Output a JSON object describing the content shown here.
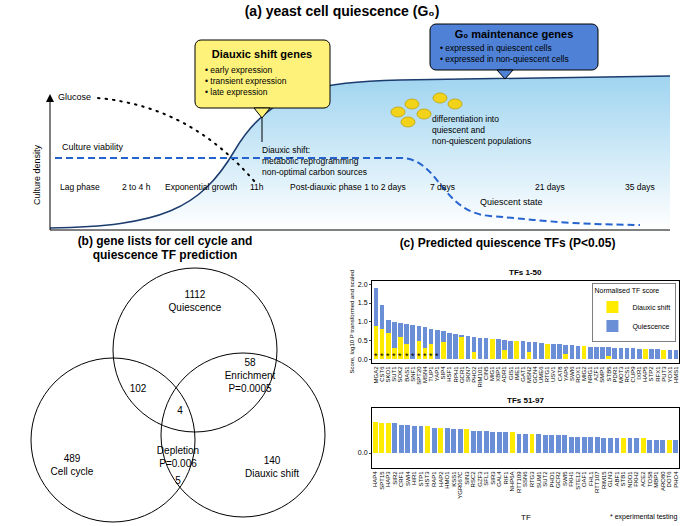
{
  "panel_a": {
    "title": "(a) yeast cell quiescence (G₀)",
    "y_label": "Culture density",
    "glucose": "Glucose",
    "viability": "Culture viability",
    "callout_diauxic": {
      "title": "Diauxic shift genes",
      "items": [
        "• early expression",
        "• transient expression",
        "• late expression"
      ]
    },
    "callout_g0": {
      "title": "G₀ maintenance genes",
      "items": [
        "• expressed in quiescent cells",
        "• expressed in non-quiescent cells"
      ]
    },
    "diauxic_note": [
      "Diauxic shift:",
      "metabolic reprogramming",
      "non-optimal carbon sources"
    ],
    "differentiation_note": [
      "differentiation into",
      "quiescent and",
      "non-quiescent populations"
    ],
    "quiescent_state": "Quiescent state",
    "timeline": [
      "Lag phase",
      "2 to 4 h",
      "Exponential growth",
      "11h",
      "Post-diauxic phase 1 to 2 days",
      "7 days",
      "21 days",
      "35 days"
    ]
  },
  "panel_b": {
    "title": [
      "(b) gene lists for cell cycle and",
      "quiescence TF prediction"
    ],
    "sets": [
      {
        "name": "Quiescence",
        "only": 1112
      },
      {
        "name": "Cell cycle",
        "only": 489
      },
      {
        "name": "Diauxic shift",
        "only": 140
      }
    ],
    "quiescence_cell_cycle": 102,
    "quiescence_diauxic_shift": {
      "count": 58,
      "label": "Enrichment",
      "p_label": "P=0.0005"
    },
    "cell_cycle_diauxic_shift": {
      "count": 5,
      "label": "Depletion",
      "p_label": "P=0.006"
    },
    "all_three": 4
  },
  "panel_c_title": "(c) Predicted quiescence TFs (P<0.05)",
  "chart_data": [
    {
      "type": "bar",
      "title": "TFs 1-50",
      "stacked": true,
      "legend": "upper right",
      "legend_title": "Normalised TF score",
      "y_label": "Score, log10 P transformed and scaled",
      "categories": [
        "MGA2",
        "CST6",
        "SKO1",
        "SUT1",
        "SOK2",
        "BAS1",
        "SNF1",
        "SPT20",
        "MSN4",
        "TUP1",
        "YAP1",
        "SIP4",
        "HSF1",
        "RPH1",
        "GCR1",
        "SKN7",
        "PHO2",
        "RIM101",
        "CIN5",
        "MIG1",
        "XBP1",
        "ADR1",
        "GIS1",
        "IME1",
        "GAT1",
        "MSN2",
        "GCN4",
        "UME6",
        "RTG1",
        "USV1",
        "CAT8",
        "YAP6",
        "SWI6",
        "ROX1",
        "MIG2",
        "NRG1",
        "AZF1",
        "SMP1",
        "STB5",
        "PDR1",
        "MOT3",
        "RCS1",
        "CUP9",
        "IXR1",
        "HAP5",
        "STP2",
        "RFX1",
        "PUT3",
        "YOX1",
        "HMS1"
      ],
      "series": [
        {
          "name": "Diauxic shift",
          "color": "#ffeb00",
          "values": [
            0.9,
            0.8,
            0.7,
            0.3,
            0.6,
            0.4,
            0,
            0.5,
            0.3,
            0.4,
            0,
            0.45,
            0,
            0,
            0.6,
            0,
            0.2,
            0,
            0,
            0.55,
            0,
            0.25,
            0,
            0.5,
            0,
            0.2,
            0,
            0,
            0.42,
            0,
            0,
            0.15,
            0,
            0,
            0.35,
            0,
            0,
            0,
            0.1,
            0,
            0,
            0,
            0,
            0,
            0.28,
            0,
            0,
            0.26,
            0,
            0
          ]
        },
        {
          "name": "Quiescence",
          "color": "#6b8fd6",
          "values": [
            1.0,
            0.65,
            0.35,
            0.7,
            0.38,
            0.55,
            0.92,
            0.4,
            0.55,
            0.4,
            0.78,
            0.3,
            0.7,
            0.68,
            0.05,
            0.62,
            0.4,
            0.58,
            0.56,
            0,
            0.55,
            0.27,
            0.5,
            0,
            0.48,
            0.26,
            0.45,
            0.44,
            0,
            0.41,
            0.4,
            0.23,
            0.37,
            0.36,
            0,
            0.34,
            0.33,
            0.32,
            0.22,
            0.31,
            0.3,
            0.3,
            0.29,
            0.28,
            0,
            0.27,
            0.27,
            0,
            0.26,
            0.25
          ]
        }
      ],
      "ylim": [
        -0.1,
        2.1
      ],
      "yticks": [
        {
          "value": 0,
          "label": "0.0"
        },
        {
          "value": 0.5,
          "label": "0.5"
        },
        {
          "value": 1,
          "label": "1.0"
        },
        {
          "value": 1.5,
          "label": "1.5"
        },
        {
          "value": 2,
          "label": "2.0"
        }
      ],
      "annotations": [
        {
          "text": "*",
          "categories": [
            "MGA2",
            "CST6",
            "SKO1",
            "SUT1",
            "SOK2",
            "BAS1",
            "SNF1",
            "SPT20",
            "MSN4",
            "TUP1",
            "YAP1"
          ]
        }
      ]
    },
    {
      "type": "bar",
      "title": "TFs 51-97",
      "stacked": true,
      "x_label": "TF",
      "note": "* experimental testing",
      "categories": [
        "HAP4",
        "SPT15",
        "HAP3",
        "SIR2",
        "CRF1",
        "SWI4",
        "HIR1",
        "STP1",
        "HST3",
        "RAP1",
        "HAP2",
        "HMO1",
        "KSS1",
        "YGR067C",
        "SIN3",
        "RSC2",
        "GZF3",
        "SFL1",
        "SIR3",
        "GAL4",
        "RIF1",
        "NHP6A",
        "RTT109",
        "SSN6",
        "RTG3",
        "SUM1",
        "SUT2",
        "PHD1",
        "GCR2",
        "SWI5",
        "FKH1",
        "STE12",
        "OAF1",
        "FHL1",
        "RTT107",
        "RIM15",
        "GLN3",
        "ABF1",
        "STB1",
        "NDD1",
        "FKH2",
        "ACE2",
        "TOS8",
        "MBP1",
        "ARO80",
        "DOT6",
        "PHO4"
      ],
      "series": [
        {
          "name": "Diauxic shift",
          "color": "#ffeb00",
          "values": [
            0.21,
            0.2,
            0.2,
            0,
            0,
            0,
            0,
            0,
            0.18,
            0,
            0.17,
            0,
            0,
            0,
            0.16,
            0,
            0,
            0,
            0,
            0,
            0,
            0.14,
            0,
            0,
            0.13,
            0,
            0,
            0,
            0,
            0,
            0,
            0,
            0,
            0,
            0,
            0,
            0,
            0,
            0.1,
            0,
            0,
            0.1,
            0,
            0,
            0,
            0.09,
            0
          ]
        },
        {
          "name": "Quiescence",
          "color": "#6b8fd6",
          "values": [
            0,
            0,
            0,
            0.2,
            0.19,
            0.19,
            0.18,
            0.18,
            0,
            0.17,
            0,
            0.17,
            0.16,
            0.16,
            0,
            0.15,
            0.15,
            0.15,
            0.14,
            0.14,
            0.14,
            0,
            0.13,
            0.13,
            0,
            0.13,
            0.12,
            0.12,
            0.12,
            0.12,
            0.11,
            0.11,
            0.11,
            0.11,
            0.11,
            0.1,
            0.1,
            0.1,
            0,
            0.1,
            0.1,
            0,
            0.09,
            0.09,
            0.09,
            0,
            0.09
          ]
        }
      ],
      "ylim": [
        -0.1,
        0.3
      ],
      "yticks": [
        {
          "value": 0,
          "label": "0.0"
        }
      ]
    }
  ]
}
